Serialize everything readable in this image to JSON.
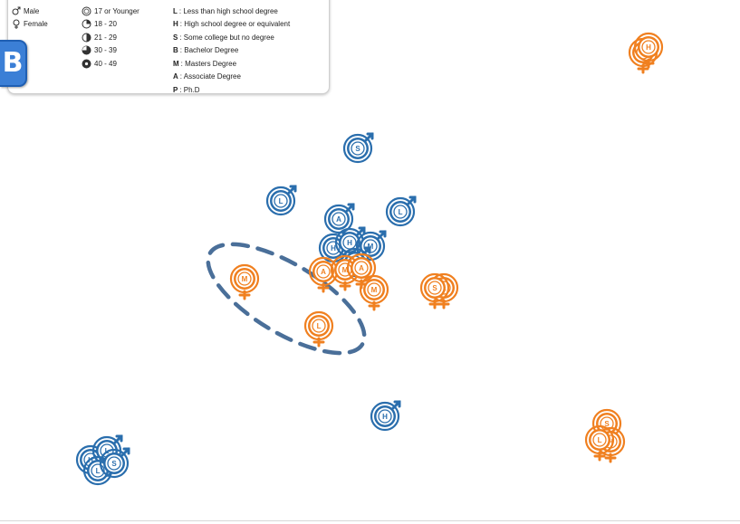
{
  "panel": {
    "label": "B"
  },
  "legend": {
    "gender": [
      {
        "symbol": "male-icon",
        "label": "Male"
      },
      {
        "symbol": "female-icon",
        "label": "Female"
      }
    ],
    "age": [
      {
        "symbol": "age-17-icon",
        "label": "17 or Younger",
        "fill": 0.0
      },
      {
        "symbol": "age-18-20-icon",
        "label": "18 - 20",
        "fill": 0.25
      },
      {
        "symbol": "age-21-29-icon",
        "label": "21 - 29",
        "fill": 0.5
      },
      {
        "symbol": "age-30-39-icon",
        "label": "30 - 39",
        "fill": 0.75
      },
      {
        "symbol": "age-40-49-icon",
        "label": "40 - 49",
        "fill": 1.0
      }
    ],
    "education": [
      {
        "code": "L",
        "label": ": Less than high school degree"
      },
      {
        "code": "H",
        "label": ": High school degree or equivalent"
      },
      {
        "code": "S",
        "label": ": Some college but no degree"
      },
      {
        "code": "B",
        "label": ": Bachelor Degree"
      },
      {
        "code": "M",
        "label": ": Masters Degree"
      },
      {
        "code": "A",
        "label": ": Associate Degree"
      },
      {
        "code": "P",
        "label": ": Ph.D"
      }
    ]
  },
  "colors": {
    "male": "#2a6ead",
    "female": "#f08020",
    "outline": "#4a6f99"
  },
  "glyphs": [
    {
      "gender": "male",
      "letter": "S"
    },
    {
      "gender": "male",
      "letter": "L"
    },
    {
      "gender": "male",
      "letter": "L"
    },
    {
      "gender": "male",
      "letter": "A"
    },
    {
      "gender": "male",
      "letter": "H"
    },
    {
      "gender": "male",
      "letter": "H"
    },
    {
      "gender": "male",
      "letter": "M"
    },
    {
      "gender": "male",
      "letter": "S"
    },
    {
      "gender": "male",
      "letter": "H"
    },
    {
      "gender": "male",
      "letter": "M"
    },
    {
      "gender": "male",
      "letter": "H"
    },
    {
      "gender": "male",
      "letter": "L"
    },
    {
      "gender": "male",
      "letter": "L"
    },
    {
      "gender": "male",
      "letter": "S"
    },
    {
      "gender": "female",
      "letter": "A"
    },
    {
      "gender": "female",
      "letter": "M"
    },
    {
      "gender": "female",
      "letter": "A"
    },
    {
      "gender": "female",
      "letter": "M"
    },
    {
      "gender": "female",
      "letter": "M"
    },
    {
      "gender": "female",
      "letter": "L"
    },
    {
      "gender": "female",
      "letter": "S"
    },
    {
      "gender": "female",
      "letter": "H"
    },
    {
      "gender": "female",
      "letter": "L"
    },
    {
      "gender": "female",
      "letter": "S"
    },
    {
      "gender": "female",
      "letter": "S"
    },
    {
      "gender": "female",
      "letter": "H"
    },
    {
      "gender": "female",
      "letter": "L"
    }
  ]
}
